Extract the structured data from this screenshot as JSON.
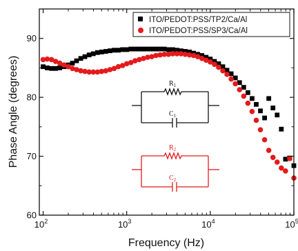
{
  "chart_data": {
    "type": "scatter",
    "xlabel": "Frequency (Hz)",
    "ylabel": "Phase Angle (degrees)",
    "x_scale": "log",
    "xlim": [
      90,
      100000
    ],
    "ylim": [
      60,
      95
    ],
    "x_ticks": [
      {
        "value": 100,
        "base": "10",
        "exp": "2"
      },
      {
        "value": 1000,
        "base": "10",
        "exp": "3"
      },
      {
        "value": 10000,
        "base": "10",
        "exp": "4"
      },
      {
        "value": 100000,
        "base": "10",
        "exp": "5"
      }
    ],
    "y_ticks": [
      60,
      70,
      80,
      90
    ],
    "grid": false,
    "legend_position": "top-right",
    "series": [
      {
        "name": "ITO/PEDOT:PSS/TP2/Ca/Al",
        "marker": "square",
        "color": "#000000",
        "points": [
          [
            100,
            85.2
          ],
          [
            112,
            85.0
          ],
          [
            126,
            84.9
          ],
          [
            141,
            84.9
          ],
          [
            158,
            85.0
          ],
          [
            178,
            85.2
          ],
          [
            200,
            85.5
          ],
          [
            224,
            85.8
          ],
          [
            251,
            86.2
          ],
          [
            282,
            86.6
          ],
          [
            316,
            86.9
          ],
          [
            355,
            87.2
          ],
          [
            398,
            87.4
          ],
          [
            447,
            87.6
          ],
          [
            501,
            87.7
          ],
          [
            562,
            87.8
          ],
          [
            631,
            87.9
          ],
          [
            708,
            88.0
          ],
          [
            794,
            88.0
          ],
          [
            891,
            88.1
          ],
          [
            1000,
            88.1
          ],
          [
            1122,
            88.2
          ],
          [
            1259,
            88.2
          ],
          [
            1413,
            88.2
          ],
          [
            1585,
            88.2
          ],
          [
            1778,
            88.2
          ],
          [
            1995,
            88.2
          ],
          [
            2239,
            88.2
          ],
          [
            2512,
            88.2
          ],
          [
            2818,
            88.2
          ],
          [
            3162,
            88.1
          ],
          [
            3548,
            88.1
          ],
          [
            3981,
            88.0
          ],
          [
            4467,
            87.9
          ],
          [
            5012,
            87.8
          ],
          [
            5623,
            87.7
          ],
          [
            6310,
            87.5
          ],
          [
            7079,
            87.3
          ],
          [
            7943,
            87.1
          ],
          [
            8913,
            86.8
          ],
          [
            10000,
            86.5
          ],
          [
            11220,
            86.1
          ],
          [
            12589,
            85.7
          ],
          [
            14125,
            85.2
          ],
          [
            15849,
            84.6
          ],
          [
            17783,
            84.0
          ],
          [
            19953,
            83.3
          ],
          [
            22387,
            82.5
          ],
          [
            25119,
            81.7
          ],
          [
            28184,
            80.8
          ],
          [
            31623,
            79.8
          ],
          [
            35481,
            78.8
          ],
          [
            39811,
            77.7
          ],
          [
            44668,
            76.5
          ],
          [
            50119,
            79.8
          ],
          [
            56234,
            78.2
          ],
          [
            63096,
            77.0
          ],
          [
            70795,
            74.6
          ],
          [
            79433,
            69.5
          ],
          [
            89125,
            69.7
          ],
          [
            100000,
            68.4
          ]
        ]
      },
      {
        "name": "ITO/PEDOT:PSS/SP3/Ca/Al",
        "marker": "circle",
        "color": "#e41a1c",
        "points": [
          [
            100,
            86.4
          ],
          [
            112,
            86.5
          ],
          [
            126,
            86.4
          ],
          [
            141,
            86.1
          ],
          [
            158,
            85.8
          ],
          [
            178,
            85.5
          ],
          [
            200,
            85.2
          ],
          [
            224,
            84.9
          ],
          [
            251,
            84.7
          ],
          [
            282,
            84.5
          ],
          [
            316,
            84.4
          ],
          [
            355,
            84.3
          ],
          [
            398,
            84.3
          ],
          [
            447,
            84.3
          ],
          [
            501,
            84.4
          ],
          [
            562,
            84.5
          ],
          [
            631,
            84.7
          ],
          [
            708,
            84.9
          ],
          [
            794,
            85.2
          ],
          [
            891,
            85.4
          ],
          [
            1000,
            85.7
          ],
          [
            1122,
            85.9
          ],
          [
            1259,
            86.2
          ],
          [
            1413,
            86.4
          ],
          [
            1585,
            86.6
          ],
          [
            1778,
            86.8
          ],
          [
            1995,
            86.9
          ],
          [
            2239,
            87.1
          ],
          [
            2512,
            87.2
          ],
          [
            2818,
            87.3
          ],
          [
            3162,
            87.3
          ],
          [
            3548,
            87.4
          ],
          [
            3981,
            87.4
          ],
          [
            4467,
            87.4
          ],
          [
            5012,
            87.3
          ],
          [
            5623,
            87.2
          ],
          [
            6310,
            87.1
          ],
          [
            7079,
            86.9
          ],
          [
            7943,
            86.6
          ],
          [
            8913,
            86.3
          ],
          [
            10000,
            86.0
          ],
          [
            11220,
            85.6
          ],
          [
            12589,
            85.1
          ],
          [
            14125,
            84.5
          ],
          [
            15849,
            83.9
          ],
          [
            17783,
            83.1
          ],
          [
            19953,
            82.3
          ],
          [
            22387,
            81.3
          ],
          [
            25119,
            80.2
          ],
          [
            28184,
            79.0
          ],
          [
            31623,
            77.6
          ],
          [
            35481,
            76.1
          ],
          [
            39811,
            74.5
          ],
          [
            44668,
            72.8
          ],
          [
            50119,
            71.0
          ],
          [
            56234,
            69.8
          ],
          [
            63096,
            69.0
          ],
          [
            70795,
            68.0
          ],
          [
            79433,
            67.5
          ],
          [
            89125,
            69.6
          ],
          [
            100000,
            66.3
          ]
        ]
      }
    ],
    "insets": [
      {
        "kind": "parallel-RC",
        "color": "#111111",
        "r_base": "R",
        "r_sub": "1",
        "c_base": "C",
        "c_sub": "1"
      },
      {
        "kind": "parallel-RC",
        "color": "#e41a1c",
        "r_base": "R",
        "r_sub": "2",
        "c_base": "C",
        "c_sub": "2"
      }
    ]
  }
}
